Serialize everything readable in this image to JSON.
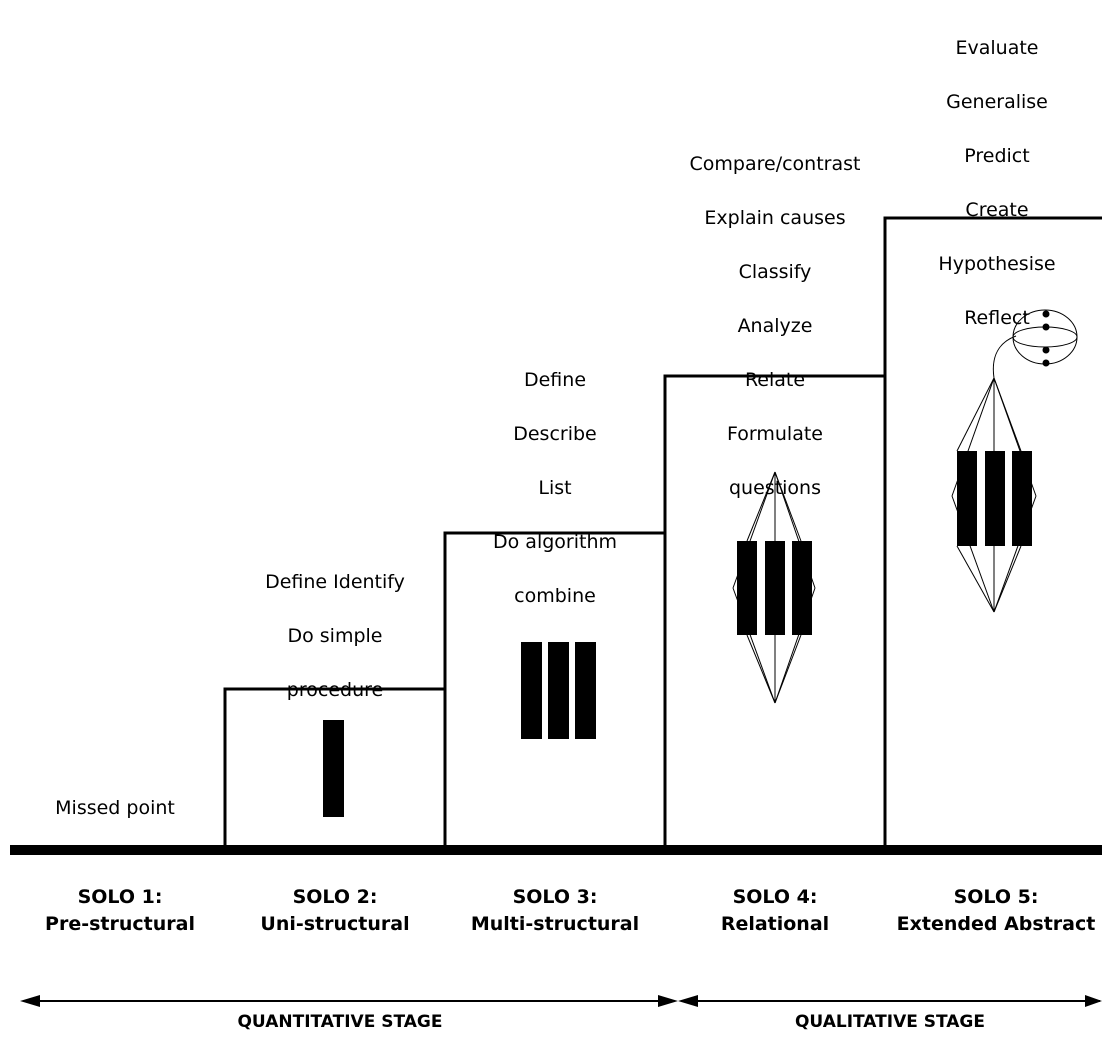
{
  "levels": [
    {
      "code": "SOLO 1:",
      "name": "Pre-structural",
      "verbs": [
        "Missed point"
      ]
    },
    {
      "code": "SOLO 2:",
      "name": "Uni-structural",
      "verbs": [
        "Define Identify",
        "Do simple",
        "procedure"
      ]
    },
    {
      "code": "SOLO 3:",
      "name": "Multi-structural",
      "verbs": [
        "Define",
        "Describe",
        "List",
        "Do algorithm",
        "combine"
      ]
    },
    {
      "code": "SOLO 4:",
      "name": "Relational",
      "verbs": [
        "Compare/contrast",
        "Explain causes",
        "Classify",
        "Analyze",
        "Relate",
        "Formulate",
        "questions"
      ]
    },
    {
      "code": "SOLO 5:",
      "name": "Extended Abstract",
      "verbs": [
        "Evaluate",
        "Generalise",
        "Predict",
        "Create",
        "Hypothesise",
        "Reflect"
      ]
    }
  ],
  "stages": [
    {
      "label": "QUANTITATIVE STAGE"
    },
    {
      "label": "QUALITATIVE STAGE"
    }
  ]
}
